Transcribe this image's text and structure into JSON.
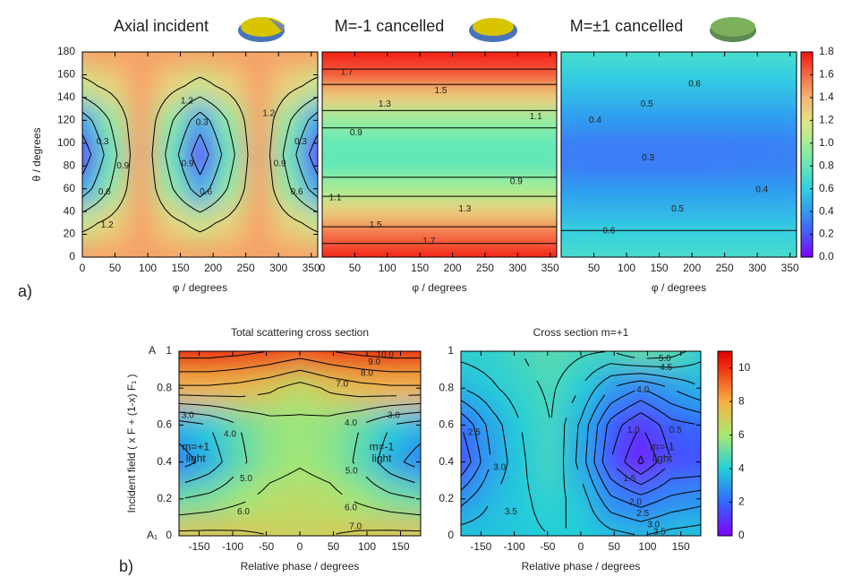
{
  "panel_labels": [
    "a)",
    "b)"
  ],
  "colorbars": [
    {
      "zlim": [
        0,
        1.8
      ],
      "ticks": [
        {
          "value": 0,
          "label": "0.0"
        },
        0.2,
        0.4,
        0.6,
        0.8,
        {
          "value": 1,
          "label": "1.0"
        },
        1.2,
        1.4,
        1.6,
        1.8
      ],
      "colormap": [
        {
          "value": 0,
          "color": "#7f00ff"
        },
        {
          "value": 0.2,
          "color": "#4a55ff"
        },
        {
          "value": 0.4,
          "color": "#2f9af0"
        },
        {
          "value": 0.6,
          "color": "#30d0e0"
        },
        {
          "value": 0.8,
          "color": "#62e8b8"
        },
        {
          "value": 1,
          "color": "#a4ee92"
        },
        {
          "value": 1.2,
          "color": "#e2e482"
        },
        {
          "value": 1.4,
          "color": "#f4b474"
        },
        {
          "value": 1.6,
          "color": "#f66a44"
        },
        {
          "value": 1.8,
          "color": "#ee1414"
        }
      ]
    },
    {
      "zlim": [
        0,
        11
      ],
      "ticks": [
        0,
        2,
        4,
        6,
        8,
        10
      ],
      "colormap": [
        {
          "value": 0,
          "color": "#7f00ff"
        },
        {
          "value": 2,
          "color": "#3366ff"
        },
        {
          "value": 4,
          "color": "#22cfd8"
        },
        {
          "value": 6,
          "color": "#a8e872"
        },
        {
          "value": 8,
          "color": "#f8b040"
        },
        {
          "value": 10,
          "color": "#f03010"
        },
        {
          "value": 11,
          "color": "#e00000"
        }
      ]
    }
  ],
  "chart_data": [
    {
      "type": "contour",
      "colorbar": 0,
      "title": "Axial incident",
      "xlabel": "φ / degrees",
      "ylabel": "θ / degrees",
      "xlim": [
        0,
        360
      ],
      "ylim": [
        0,
        180
      ],
      "xticks": [
        0,
        50,
        100,
        150,
        200,
        250,
        300,
        350
      ],
      "yticks": [
        0,
        20,
        40,
        60,
        80,
        100,
        120,
        140,
        160,
        180
      ],
      "x": [
        0,
        45,
        90,
        135,
        180,
        225,
        270,
        315,
        360
      ],
      "y": [
        0,
        30,
        60,
        90,
        120,
        150,
        180
      ],
      "z": [
        [
          1.45,
          1.45,
          1.45,
          1.45,
          1.45,
          1.45,
          1.45,
          1.45,
          1.45
        ],
        [
          1.11,
          1.28,
          1.45,
          1.28,
          1.11,
          1.28,
          1.45,
          1.28,
          1.11
        ],
        [
          0.44,
          0.94,
          1.45,
          0.94,
          0.44,
          0.94,
          1.45,
          0.94,
          0.44
        ],
        [
          0.1,
          0.78,
          1.45,
          0.78,
          0.1,
          0.78,
          1.45,
          0.78,
          0.1
        ],
        [
          0.44,
          0.94,
          1.45,
          0.94,
          0.44,
          0.94,
          1.45,
          0.94,
          0.44
        ],
        [
          1.11,
          1.28,
          1.45,
          1.28,
          1.11,
          1.28,
          1.45,
          1.28,
          1.11
        ],
        [
          1.45,
          1.45,
          1.45,
          1.45,
          1.45,
          1.45,
          1.45,
          1.45,
          1.45
        ]
      ],
      "contour_levels": [
        0.3,
        0.6,
        0.9,
        1.2
      ],
      "contour_labels": [
        {
          "x": 160,
          "y": 137,
          "value": 1.2
        },
        {
          "x": 285,
          "y": 126,
          "value": 1.2
        },
        {
          "x": 38,
          "y": 28,
          "value": 1.2
        },
        {
          "x": 31,
          "y": 101,
          "value": 0.3
        },
        {
          "x": 183,
          "y": 118,
          "value": 0.3
        },
        {
          "x": 334,
          "y": 101,
          "value": 0.3
        },
        {
          "x": 62,
          "y": 80,
          "value": 0.9
        },
        {
          "x": 161,
          "y": 82,
          "value": 0.9
        },
        {
          "x": 302,
          "y": 82,
          "value": 0.9
        },
        {
          "x": 34,
          "y": 57,
          "value": 0.6
        },
        {
          "x": 189,
          "y": 57,
          "value": 0.6
        },
        {
          "x": 328,
          "y": 57,
          "value": 0.6
        }
      ]
    },
    {
      "type": "contour",
      "colorbar": 0,
      "title": "M=-1 cancelled",
      "xlabel": "φ / degrees",
      "xlim": [
        0,
        360
      ],
      "ylim": [
        0,
        180
      ],
      "xticks": [
        0,
        50,
        100,
        150,
        200,
        250,
        300,
        350
      ],
      "x": [
        0,
        180,
        360
      ],
      "y": [
        0,
        20,
        40,
        60,
        80,
        100,
        120,
        140,
        160,
        180
      ],
      "z": [
        [
          1.85,
          1.85,
          1.85
        ],
        [
          1.6,
          1.6,
          1.6
        ],
        [
          1.3,
          1.3,
          1.3
        ],
        [
          1.0,
          1.0,
          1.0
        ],
        [
          0.8,
          0.8,
          0.8
        ],
        [
          0.8,
          0.8,
          0.8
        ],
        [
          0.95,
          0.95,
          0.95
        ],
        [
          1.3,
          1.3,
          1.3
        ],
        [
          1.65,
          1.65,
          1.65
        ],
        [
          1.85,
          1.85,
          1.85
        ]
      ],
      "contour_levels": [
        0.9,
        1.1,
        1.3,
        1.5,
        1.7
      ],
      "contour_labels": [
        {
          "x": 38,
          "y": 162,
          "value": 1.7
        },
        {
          "x": 182,
          "y": 146,
          "value": 1.5
        },
        {
          "x": 96,
          "y": 134,
          "value": 1.3
        },
        {
          "x": 328,
          "y": 123,
          "value": 1.1
        },
        {
          "x": 52,
          "y": 109,
          "value": 0.9
        },
        {
          "x": 298,
          "y": 66,
          "value": 0.9
        },
        {
          "x": 20,
          "y": 52,
          "value": 1.1
        },
        {
          "x": 219,
          "y": 42,
          "value": 1.3
        },
        {
          "x": 82,
          "y": 28,
          "value": 1.5
        },
        {
          "x": 164,
          "y": 14,
          "value": 1.7
        }
      ]
    },
    {
      "type": "contour",
      "colorbar": 0,
      "title": "M=±1 cancelled",
      "xlabel": "φ / degrees",
      "xlim": [
        0,
        360
      ],
      "ylim": [
        0,
        180
      ],
      "xticks": [
        50,
        100,
        150,
        200,
        250,
        300,
        350
      ],
      "x": [
        0,
        180,
        360
      ],
      "y": [
        0,
        20,
        40,
        60,
        80,
        100,
        120,
        140,
        160,
        180
      ],
      "z": [
        [
          0.7,
          0.7,
          0.7
        ],
        [
          0.62,
          0.62,
          0.62
        ],
        [
          0.5,
          0.5,
          0.5
        ],
        [
          0.4,
          0.4,
          0.4
        ],
        [
          0.32,
          0.31,
          0.33
        ],
        [
          0.32,
          0.31,
          0.33
        ],
        [
          0.4,
          0.4,
          0.4
        ],
        [
          0.5,
          0.5,
          0.5
        ],
        [
          0.6,
          0.6,
          0.6
        ],
        [
          0.7,
          0.7,
          0.7
        ]
      ],
      "contour_levels": [
        0.3,
        0.4,
        0.5,
        0.6
      ],
      "contour_labels": [
        {
          "x": 204,
          "y": 152,
          "value": 0.6
        },
        {
          "x": 131,
          "y": 134,
          "value": 0.5
        },
        {
          "x": 52,
          "y": 120,
          "value": 0.4
        },
        {
          "x": 133,
          "y": 87,
          "value": 0.3
        },
        {
          "x": 307,
          "y": 59,
          "value": 0.4
        },
        {
          "x": 178,
          "y": 42,
          "value": 0.5
        },
        {
          "x": 73,
          "y": 23,
          "value": 0.6
        }
      ]
    },
    {
      "type": "contour",
      "colorbar": 1,
      "title": "Total scattering cross section",
      "xlabel": "Relative phase / degrees",
      "ylabel": "Incident field ( x F + (1-x) F₁ )",
      "y_annotations": [
        "A",
        "A₁"
      ],
      "xlim": [
        -180,
        180
      ],
      "ylim": [
        0,
        1
      ],
      "xticks": [
        -150,
        -100,
        -50,
        0,
        50,
        100,
        150
      ],
      "yticks": [
        0,
        0.2,
        0.4,
        0.6,
        0.8,
        1
      ],
      "x": [
        -180,
        -135,
        -90,
        -45,
        0,
        45,
        90,
        135,
        180
      ],
      "y": [
        0,
        0.2,
        0.4,
        0.6,
        0.8,
        1
      ],
      "z": [
        [
          7.3,
          7.3,
          7.2,
          7.0,
          6.8,
          7.0,
          7.2,
          7.3,
          7.3
        ],
        [
          5.0,
          5.3,
          5.8,
          6.3,
          6.5,
          6.3,
          5.8,
          5.3,
          5.0
        ],
        [
          2.5,
          3.4,
          4.8,
          5.6,
          5.9,
          5.6,
          4.8,
          3.4,
          2.5
        ],
        [
          3.5,
          4.0,
          5.0,
          5.6,
          5.8,
          5.6,
          5.0,
          4.0,
          3.5
        ],
        [
          7.8,
          7.8,
          7.6,
          7.2,
          6.5,
          7.2,
          7.6,
          7.8,
          7.8
        ],
        [
          10.5,
          10.5,
          10.3,
          10.0,
          9.6,
          10.0,
          10.3,
          10.5,
          10.5
        ]
      ],
      "contour_levels": [
        3,
        4,
        5,
        6,
        7,
        8,
        9,
        10
      ],
      "contour_labels": [
        {
          "x": 127,
          "y": 0.98,
          "value": 10,
          "label": "10.0"
        },
        {
          "x": 111,
          "y": 0.94,
          "value": 9,
          "label": "9.0"
        },
        {
          "x": 100,
          "y": 0.88,
          "value": 8,
          "label": "8.0"
        },
        {
          "x": 63,
          "y": 0.82,
          "value": 7,
          "label": "7.0"
        },
        {
          "x": -167,
          "y": 0.65,
          "value": 3,
          "label": "3.0"
        },
        {
          "x": -104,
          "y": 0.55,
          "value": 4,
          "label": "4.0"
        },
        {
          "x": 140,
          "y": 0.65,
          "value": 3,
          "label": "3.0"
        },
        {
          "x": 76,
          "y": 0.61,
          "value": 4,
          "label": "4.0"
        },
        {
          "x": -80,
          "y": 0.31,
          "value": 5,
          "label": "5.0"
        },
        {
          "x": 77,
          "y": 0.35,
          "value": 5,
          "label": "5.0"
        },
        {
          "x": -84,
          "y": 0.13,
          "value": 6,
          "label": "6.0"
        },
        {
          "x": 76,
          "y": 0.15,
          "value": 6,
          "label": "6.0"
        },
        {
          "x": 83,
          "y": 0.05,
          "value": 7,
          "label": "7.0"
        }
      ],
      "annotations": [
        {
          "x": -155,
          "y": 0.48,
          "lines": [
            "m=+1",
            "light"
          ]
        },
        {
          "x": 122,
          "y": 0.48,
          "lines": [
            "m=-1",
            "light"
          ]
        }
      ]
    },
    {
      "type": "contour",
      "colorbar": 1,
      "title": "Cross section m=+1",
      "xlabel": "Relative phase / degrees",
      "xlim": [
        -180,
        180
      ],
      "ylim": [
        0,
        1
      ],
      "xticks": [
        -150,
        -100,
        -50,
        0,
        50,
        100,
        150
      ],
      "yticks": [
        0,
        0.2,
        0.4,
        0.6,
        0.8,
        1
      ],
      "x": [
        -180,
        -135,
        -90,
        -45,
        0,
        45,
        90,
        135,
        180
      ],
      "y": [
        0,
        0.2,
        0.4,
        0.6,
        0.8,
        1
      ],
      "z": [
        [
          3.8,
          3.8,
          3.9,
          4.0,
          4.0,
          3.7,
          3.5,
          3.7,
          3.8
        ],
        [
          2.8,
          3.5,
          3.9,
          4.2,
          3.8,
          2.6,
          2.2,
          2.6,
          2.8
        ],
        [
          1.5,
          3.0,
          3.9,
          4.5,
          3.3,
          1.5,
          0.4,
          1.5,
          1.5
        ],
        [
          2.0,
          3.2,
          4.0,
          4.5,
          3.4,
          1.8,
          1.0,
          1.8,
          2.0
        ],
        [
          3.5,
          3.9,
          4.3,
          4.6,
          4.0,
          3.0,
          2.5,
          3.0,
          3.5
        ],
        [
          4.2,
          4.3,
          4.5,
          4.8,
          4.6,
          4.5,
          5.0,
          4.8,
          4.2
        ]
      ],
      "contour_levels": [
        0.5,
        1,
        1.5,
        2,
        2.5,
        3,
        3.5,
        4,
        4.5,
        5
      ],
      "contour_labels": [
        {
          "x": 126,
          "y": 0.96,
          "value": 5,
          "label": "5.0"
        },
        {
          "x": 128,
          "y": 0.91,
          "value": 4.5
        },
        {
          "x": 93,
          "y": 0.79,
          "value": 4,
          "label": "4.0"
        },
        {
          "x": -160,
          "y": 0.56,
          "value": 2.5
        },
        {
          "x": -122,
          "y": 0.37,
          "value": 3,
          "label": "3.0"
        },
        {
          "x": -105,
          "y": 0.13,
          "value": 3.5
        },
        {
          "x": 79,
          "y": 0.57,
          "value": 1,
          "label": "1.0"
        },
        {
          "x": 142,
          "y": 0.57,
          "value": 0.5
        },
        {
          "x": 73,
          "y": 0.31,
          "value": 1.5
        },
        {
          "x": 82,
          "y": 0.18,
          "value": 2,
          "label": "2.0"
        },
        {
          "x": 93,
          "y": 0.12,
          "value": 2.5
        },
        {
          "x": 109,
          "y": 0.06,
          "value": 3,
          "label": "3.0"
        },
        {
          "x": 118,
          "y": 0.02,
          "value": 3.5
        }
      ],
      "annotations": [
        {
          "x": 122,
          "y": 0.48,
          "lines": [
            "m=-1",
            "light"
          ]
        }
      ]
    }
  ]
}
